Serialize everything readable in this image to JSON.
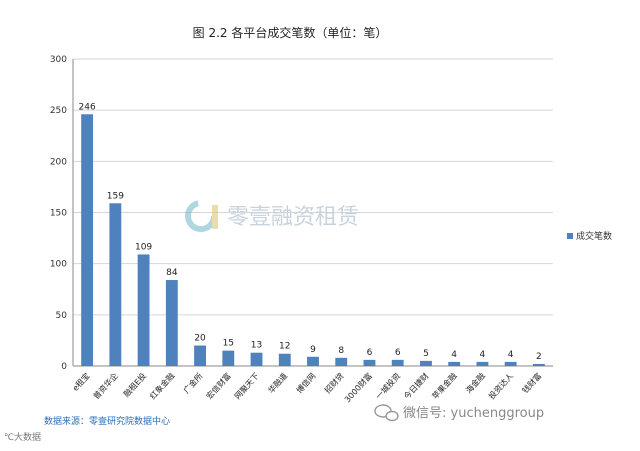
{
  "chart_data": {
    "type": "bar",
    "title": "图 2.2 各平台成交笔数（单位：笔）",
    "xlabel": "",
    "ylabel": "",
    "ylim": [
      0,
      300
    ],
    "yticks": [
      0,
      50,
      100,
      150,
      200,
      250,
      300
    ],
    "grid": true,
    "legend": "right",
    "color": "#4f81bd",
    "categories": [
      "e租宝",
      "普资华企",
      "融租E投",
      "红象金融",
      "广金所",
      "宏信财富",
      "网聚天下",
      "华融道",
      "博信网",
      "招财贷",
      "3000财富",
      "一城投资",
      "今日捷财",
      "苹果金融",
      "海金融",
      "投资达人",
      "钱财富"
    ],
    "series": [
      {
        "name": "成交笔数",
        "values": [
          246,
          159,
          109,
          84,
          20,
          15,
          13,
          12,
          9,
          8,
          6,
          6,
          5,
          4,
          4,
          4,
          2
        ]
      }
    ]
  },
  "watermark": {
    "text": "零壹融资租赁"
  },
  "source": "数据来源：零壹研究院数据中心",
  "wechat": "微信号: yuchenggroup",
  "corner_mark": "大数据"
}
